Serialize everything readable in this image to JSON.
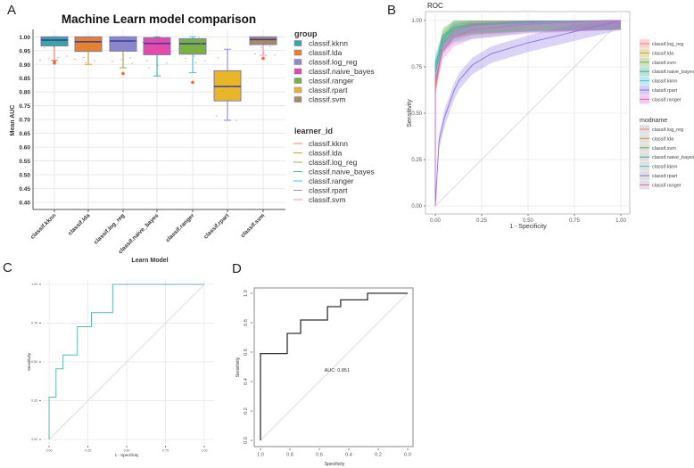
{
  "panels": {
    "a": "A",
    "b": "B",
    "c": "C",
    "d": "D"
  },
  "chart_data": [
    {
      "panel": "A",
      "type": "box",
      "title": "Machine Learn model comparison",
      "xlabel": "Learn Model",
      "ylabel": "Mean AUC",
      "ylim": [
        0.37,
        1.03
      ],
      "yticks": [
        "0.40",
        "0.45",
        "0.50",
        "0.55",
        "0.60",
        "0.65",
        "0.70",
        "0.75",
        "0.80",
        "0.85",
        "0.90",
        "0.95",
        "1.00"
      ],
      "grid": true,
      "legend_position": "right",
      "legend_group_title": "group",
      "legend_learner_title": "learner_id",
      "learner_colors": [
        "#f08070",
        "#c8a030",
        "#9aae50",
        "#40b8a0",
        "#50c0e0",
        "#9a90e0",
        "#f090c0"
      ],
      "categories": [
        "classif.kknn",
        "classif.lda",
        "classif.log_reg",
        "classif.naive_bayes",
        "classif.ranger",
        "classif.rpart",
        "classif.svm"
      ],
      "boxes": [
        {
          "q1": 0.967,
          "median": 0.988,
          "q3": 1.0,
          "low": 0.915,
          "high": 1.0,
          "outliers": [
            0.905,
            0.91
          ],
          "color": "#3aa6a0"
        },
        {
          "q1": 0.947,
          "median": 0.982,
          "q3": 1.0,
          "low": 0.9,
          "high": 1.0,
          "outliers": [],
          "color": "#e8822a"
        },
        {
          "q1": 0.948,
          "median": 0.985,
          "q3": 1.0,
          "low": 0.888,
          "high": 1.0,
          "outliers": [
            0.867
          ],
          "color": "#8b87c9"
        },
        {
          "q1": 0.935,
          "median": 0.976,
          "q3": 0.997,
          "low": 0.858,
          "high": 1.0,
          "outliers": [],
          "color": "#e34aa9"
        },
        {
          "q1": 0.937,
          "median": 0.975,
          "q3": 0.993,
          "low": 0.87,
          "high": 1.0,
          "outliers": [
            0.835
          ],
          "color": "#79b23c"
        },
        {
          "q1": 0.768,
          "median": 0.82,
          "q3": 0.877,
          "low": 0.697,
          "high": 0.955,
          "outliers": [],
          "color": "#e8b627"
        },
        {
          "q1": 0.972,
          "median": 0.99,
          "q3": 1.0,
          "low": 0.933,
          "high": 1.0,
          "outliers": [
            0.922
          ],
          "color": "#a88c5a"
        }
      ]
    },
    {
      "panel": "B",
      "type": "line",
      "title": "ROC",
      "xlabel": "1 - Specificity",
      "ylabel": "Sensitivity",
      "xlim": [
        0,
        1
      ],
      "ylim": [
        0,
        1
      ],
      "xticks": [
        "0.00",
        "0.25",
        "0.50",
        "0.75",
        "1.00"
      ],
      "yticks": [
        "0.00",
        "0.25",
        "0.50",
        "0.75",
        "1.00"
      ],
      "grid": true,
      "legend_position": "right",
      "legend2_title": "modname",
      "series": [
        {
          "name": "classif.log_reg",
          "color": "#f08080",
          "x": [
            0,
            0,
            0.04,
            0.1,
            0.2,
            0.5,
            1
          ],
          "y": [
            0,
            0.65,
            0.87,
            0.94,
            0.97,
            0.99,
            1
          ]
        },
        {
          "name": "classif.lda",
          "color": "#c8a030",
          "x": [
            0,
            0,
            0.04,
            0.1,
            0.2,
            0.5,
            1
          ],
          "y": [
            0,
            0.63,
            0.88,
            0.95,
            0.975,
            0.99,
            1
          ]
        },
        {
          "name": "classif.svm",
          "color": "#70b040",
          "x": [
            0,
            0,
            0.04,
            0.1,
            0.2,
            0.5,
            1
          ],
          "y": [
            0,
            0.75,
            0.92,
            0.96,
            0.98,
            0.995,
            1
          ]
        },
        {
          "name": "classif.naive_bayes",
          "color": "#30b090",
          "x": [
            0,
            0,
            0.04,
            0.1,
            0.2,
            0.5,
            1
          ],
          "y": [
            0,
            0.72,
            0.9,
            0.96,
            0.98,
            0.99,
            1
          ]
        },
        {
          "name": "classif.kknn",
          "color": "#40c0e0",
          "x": [
            0,
            0,
            0.04,
            0.1,
            0.2,
            0.5,
            1
          ],
          "y": [
            0,
            0.78,
            0.88,
            0.93,
            0.95,
            0.985,
            1
          ]
        },
        {
          "name": "classif.rpart",
          "color": "#8a70e0",
          "x": [
            0,
            0.02,
            0.05,
            0.1,
            0.13,
            0.2,
            0.3,
            0.5,
            0.75,
            1
          ],
          "y": [
            0,
            0.35,
            0.48,
            0.62,
            0.68,
            0.76,
            0.82,
            0.88,
            0.94,
            1
          ]
        },
        {
          "name": "classif.ranger",
          "color": "#e060d0",
          "x": [
            0,
            0,
            0.04,
            0.1,
            0.2,
            0.5,
            1
          ],
          "y": [
            0,
            0.68,
            0.84,
            0.91,
            0.95,
            0.98,
            1
          ]
        }
      ]
    },
    {
      "panel": "C",
      "type": "line",
      "xlabel": "1 - Specificity",
      "ylabel": "Sensitivity",
      "xlim": [
        0,
        1
      ],
      "ylim": [
        0,
        1
      ],
      "xticks": [
        "0.00",
        "0.25",
        "0.50",
        "0.75",
        "1.00"
      ],
      "yticks": [
        "0.00",
        "0.25",
        "0.50",
        "0.75",
        "1.00"
      ],
      "grid": true,
      "color": "#5fb8b0",
      "x": [
        0,
        0,
        0.045,
        0.045,
        0.09,
        0.09,
        0.182,
        0.182,
        0.273,
        0.273,
        0.41,
        0.41,
        1
      ],
      "y": [
        0,
        0.273,
        0.273,
        0.455,
        0.455,
        0.545,
        0.545,
        0.727,
        0.727,
        0.818,
        0.818,
        1,
        1
      ]
    },
    {
      "panel": "D",
      "type": "line",
      "xlabel": "Specificity",
      "ylabel": "Sensitivity",
      "xlim": [
        1,
        0
      ],
      "ylim": [
        0,
        1
      ],
      "xticks": [
        "1.0",
        "0.8",
        "0.6",
        "0.4",
        "0.2",
        "0.0"
      ],
      "yticks": [
        "0.0",
        "0.2",
        "0.4",
        "0.6",
        "0.8",
        "1.0"
      ],
      "annotation": "AUC: 0.851",
      "color": "#333333",
      "x": [
        1,
        1,
        0.818,
        0.818,
        0.727,
        0.727,
        0.545,
        0.545,
        0.455,
        0.455,
        0.273,
        0.273,
        0
      ],
      "y": [
        0,
        0.59,
        0.59,
        0.727,
        0.727,
        0.818,
        0.818,
        0.909,
        0.909,
        0.955,
        0.955,
        1,
        1
      ]
    }
  ]
}
